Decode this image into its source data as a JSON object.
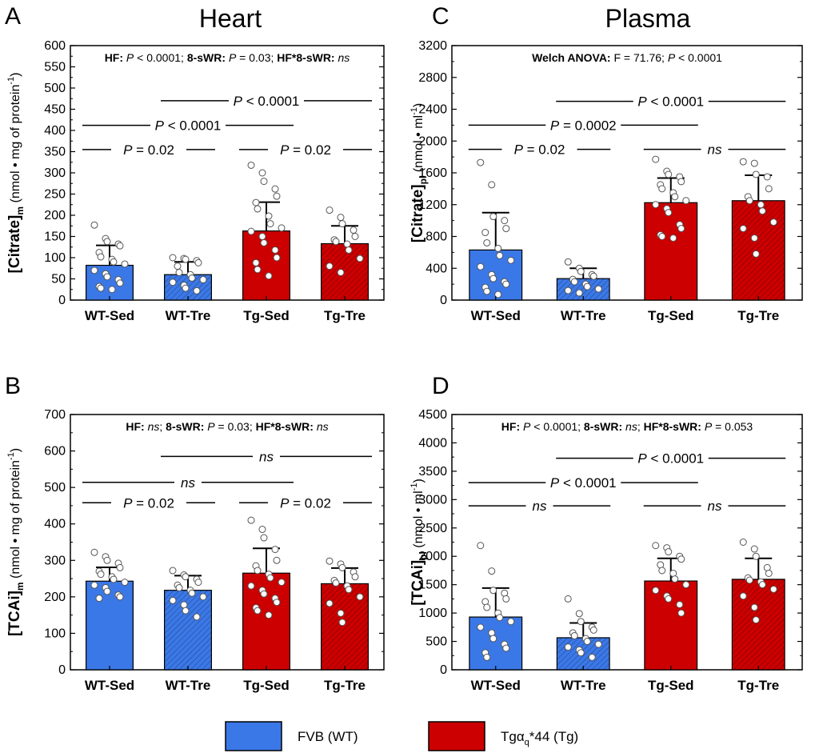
{
  "titles": {
    "heart": "Heart",
    "plasma": "Plasma"
  },
  "legend": {
    "wt_label": "FVB (WT)",
    "tg_label": "Tgα",
    "tg_sub": "q",
    "tg_rest": "*44 (Tg)",
    "colors": {
      "wt": "#3b78e7",
      "tg": "#cc0000"
    }
  },
  "chart_data": [
    {
      "panel": "A",
      "type": "bar",
      "categories": [
        "WT-Sed",
        "WT-Tre",
        "Tg-Sed",
        "Tg-Tre"
      ],
      "values": [
        82,
        60,
        163,
        133
      ],
      "sd": [
        47,
        30,
        68,
        42
      ],
      "ylim": [
        0,
        600
      ],
      "ticks": [
        0,
        50,
        100,
        150,
        200,
        250,
        300,
        350,
        400,
        450,
        500,
        550,
        600
      ],
      "ylabel": {
        "main": "[Citrate]",
        "sub": "m",
        "unit": " (nmol • mg of protein",
        "sup": "-1",
        "close": ")"
      },
      "stat_text": [
        {
          "t": "HF: ",
          "b": true
        },
        {
          "t": "P",
          "i": true
        },
        {
          "t": " < 0.0001; "
        },
        {
          "t": "8-sWR: ",
          "b": true
        },
        {
          "t": "P",
          "i": true
        },
        {
          "t": " = 0.03; "
        },
        {
          "t": "HF*8-sWR: ",
          "b": true
        },
        {
          "t": "ns",
          "i": true
        }
      ],
      "comparisons": [
        {
          "from": 0,
          "to": 1,
          "y": 355,
          "label": [
            {
              "t": "P",
              "i": true
            },
            {
              "t": " = 0.02"
            }
          ]
        },
        {
          "from": 2,
          "to": 3,
          "y": 355,
          "label": [
            {
              "t": "P",
              "i": true
            },
            {
              "t": " = 0.02"
            }
          ]
        },
        {
          "from": 0,
          "to": 2,
          "y": 412,
          "label": [
            {
              "t": "P",
              "i": true
            },
            {
              "t": " < 0.0001"
            }
          ]
        },
        {
          "from": 1,
          "to": 3,
          "y": 470,
          "label": [
            {
              "t": "P",
              "i": true
            },
            {
              "t": " < 0.0001"
            }
          ]
        }
      ],
      "points": [
        [
          177,
          145,
          138,
          132,
          128,
          112,
          102,
          96,
          90,
          85,
          70,
          62,
          55,
          48,
          40,
          32,
          28,
          25
        ],
        [
          100,
          98,
          96,
          93,
          88,
          80,
          65,
          60,
          52,
          48,
          42,
          35,
          28,
          22
        ],
        [
          318,
          300,
          280,
          262,
          245,
          230,
          215,
          198,
          180,
          170,
          162,
          150,
          135,
          118,
          100,
          88,
          72,
          57
        ],
        [
          212,
          195,
          180,
          165,
          150,
          142,
          138,
          132,
          118,
          98,
          80,
          65
        ]
      ]
    },
    {
      "panel": "B",
      "type": "bar",
      "categories": [
        "WT-Sed",
        "WT-Tre",
        "Tg-Sed",
        "Tg-Tre"
      ],
      "values": [
        243,
        218,
        265,
        236
      ],
      "sd": [
        38,
        40,
        68,
        43
      ],
      "ylim": [
        0,
        700
      ],
      "ticks": [
        0,
        100,
        200,
        300,
        400,
        500,
        600,
        700
      ],
      "ylabel": {
        "main": "[TCAi]",
        "sub": "m",
        "unit": " (nmol • mg of protein",
        "sup": "-1",
        "close": ")"
      },
      "stat_text": [
        {
          "t": "HF: ",
          "b": true
        },
        {
          "t": "ns",
          "i": true
        },
        {
          "t": "; "
        },
        {
          "t": "8-sWR: ",
          "b": true
        },
        {
          "t": "P",
          "i": true
        },
        {
          "t": " = 0.03; "
        },
        {
          "t": "HF*8-sWR: ",
          "b": true
        },
        {
          "t": "ns",
          "i": true
        }
      ],
      "comparisons": [
        {
          "from": 0,
          "to": 1,
          "y": 458,
          "label": [
            {
              "t": "P",
              "i": true
            },
            {
              "t": " = 0.02"
            }
          ]
        },
        {
          "from": 2,
          "to": 3,
          "y": 458,
          "label": [
            {
              "t": "P",
              "i": true
            },
            {
              "t": " = 0.02"
            }
          ]
        },
        {
          "from": 0,
          "to": 2,
          "y": 514,
          "label": [
            {
              "t": "ns",
              "i": true
            }
          ]
        },
        {
          "from": 1,
          "to": 3,
          "y": 585,
          "label": [
            {
              "t": "ns",
              "i": true
            }
          ]
        }
      ],
      "points": [
        [
          322,
          310,
          300,
          292,
          280,
          270,
          262,
          255,
          248,
          240,
          232,
          225,
          215,
          205,
          200,
          196
        ],
        [
          272,
          260,
          255,
          248,
          240,
          232,
          225,
          218,
          210,
          200,
          190,
          178,
          162,
          145
        ],
        [
          410,
          385,
          362,
          330,
          300,
          285,
          272,
          262,
          252,
          240,
          230,
          218,
          208,
          196,
          185,
          170,
          162,
          150
        ],
        [
          298,
          290,
          280,
          268,
          255,
          245,
          238,
          230,
          220,
          200,
          182,
          155,
          130
        ]
      ]
    },
    {
      "panel": "C",
      "type": "bar",
      "categories": [
        "WT-Sed",
        "WT-Tre",
        "Tg-Sed",
        "Tg-Tre"
      ],
      "values": [
        630,
        270,
        1225,
        1250
      ],
      "sd": [
        470,
        130,
        310,
        320
      ],
      "ylim": [
        0,
        3200
      ],
      "ticks": [
        0,
        400,
        800,
        1200,
        1600,
        2000,
        2400,
        2800,
        3200
      ],
      "ylabel": {
        "main": "[Citrate]",
        "sub": "pl",
        "unit": " (nmol • ml",
        "sup": "-1",
        "close": ")"
      },
      "stat_text": [
        {
          "t": "Welch ANOVA: ",
          "b": true
        },
        {
          "t": "F = 71.76; "
        },
        {
          "t": "P",
          "i": true
        },
        {
          "t": " < 0.0001"
        }
      ],
      "comparisons": [
        {
          "from": 0,
          "to": 1,
          "y": 1895,
          "label": [
            {
              "t": "P",
              "i": true
            },
            {
              "t": " = 0.02"
            }
          ]
        },
        {
          "from": 2,
          "to": 3,
          "y": 1895,
          "label": [
            {
              "t": "ns",
              "i": true
            }
          ]
        },
        {
          "from": 0,
          "to": 2,
          "y": 2200,
          "label": [
            {
              "t": "P",
              "i": true
            },
            {
              "t": " = 0.0002"
            }
          ]
        },
        {
          "from": 1,
          "to": 3,
          "y": 2500,
          "label": [
            {
              "t": "P",
              "i": true
            },
            {
              "t": " < 0.0001"
            }
          ]
        }
      ],
      "points": [
        [
          1730,
          1450,
          1050,
          1000,
          900,
          850,
          720,
          650,
          560,
          500,
          420,
          320,
          270,
          230,
          200,
          160,
          110,
          70
        ],
        [
          480,
          400,
          360,
          320,
          300,
          260,
          230,
          200,
          170,
          140,
          120,
          90
        ],
        [
          1770,
          1620,
          1580,
          1550,
          1490,
          1450,
          1400,
          1350,
          1300,
          1250,
          1200,
          1150,
          1100,
          950,
          900,
          820,
          800,
          780
        ],
        [
          1740,
          1720,
          1580,
          1550,
          1400,
          1300,
          1250,
          1200,
          1120,
          980,
          900,
          780,
          580
        ]
      ]
    },
    {
      "panel": "D",
      "type": "bar",
      "categories": [
        "WT-Sed",
        "WT-Tre",
        "Tg-Sed",
        "Tg-Tre"
      ],
      "values": [
        930,
        565,
        1565,
        1595
      ],
      "sd": [
        510,
        260,
        400,
        370
      ],
      "ylim": [
        0,
        4500
      ],
      "ticks": [
        0,
        500,
        1000,
        1500,
        2000,
        2500,
        3000,
        3500,
        4000,
        4500
      ],
      "ylabel": {
        "main": "[TCAi]",
        "sub": "pl",
        "unit": " (nmol • ml",
        "sup": "-1",
        "close": ")"
      },
      "stat_text": [
        {
          "t": "HF: ",
          "b": true
        },
        {
          "t": "P",
          "i": true
        },
        {
          "t": " < 0.0001; "
        },
        {
          "t": "8-sWR: ",
          "b": true
        },
        {
          "t": "ns",
          "i": true
        },
        {
          "t": "; "
        },
        {
          "t": "HF*8-sWR: ",
          "b": true
        },
        {
          "t": "P",
          "i": true
        },
        {
          "t": " = 0.053"
        }
      ],
      "comparisons": [
        {
          "from": 0,
          "to": 1,
          "y": 2890,
          "label": [
            {
              "t": "ns",
              "i": true
            }
          ]
        },
        {
          "from": 2,
          "to": 3,
          "y": 2890,
          "label": [
            {
              "t": "ns",
              "i": true
            }
          ]
        },
        {
          "from": 0,
          "to": 2,
          "y": 3300,
          "label": [
            {
              "t": "P",
              "i": true
            },
            {
              "t": " < 0.0001"
            }
          ]
        },
        {
          "from": 1,
          "to": 3,
          "y": 3730,
          "label": [
            {
              "t": "P",
              "i": true
            },
            {
              "t": " < 0.0001"
            }
          ]
        }
      ],
      "points": [
        [
          2190,
          1740,
          1400,
          1350,
          1250,
          1200,
          1100,
          1000,
          920,
          850,
          750,
          650,
          550,
          450,
          380,
          300,
          220
        ],
        [
          1250,
          990,
          850,
          750,
          700,
          650,
          600,
          550,
          500,
          450,
          400,
          350,
          300,
          220
        ],
        [
          2190,
          2150,
          2080,
          2000,
          1950,
          1850,
          1750,
          1700,
          1600,
          1500,
          1400,
          1300,
          1250,
          1150,
          1000
        ],
        [
          2250,
          2130,
          2000,
          1800,
          1700,
          1620,
          1580,
          1550,
          1500,
          1420,
          1300,
          1100,
          880
        ]
      ]
    }
  ]
}
